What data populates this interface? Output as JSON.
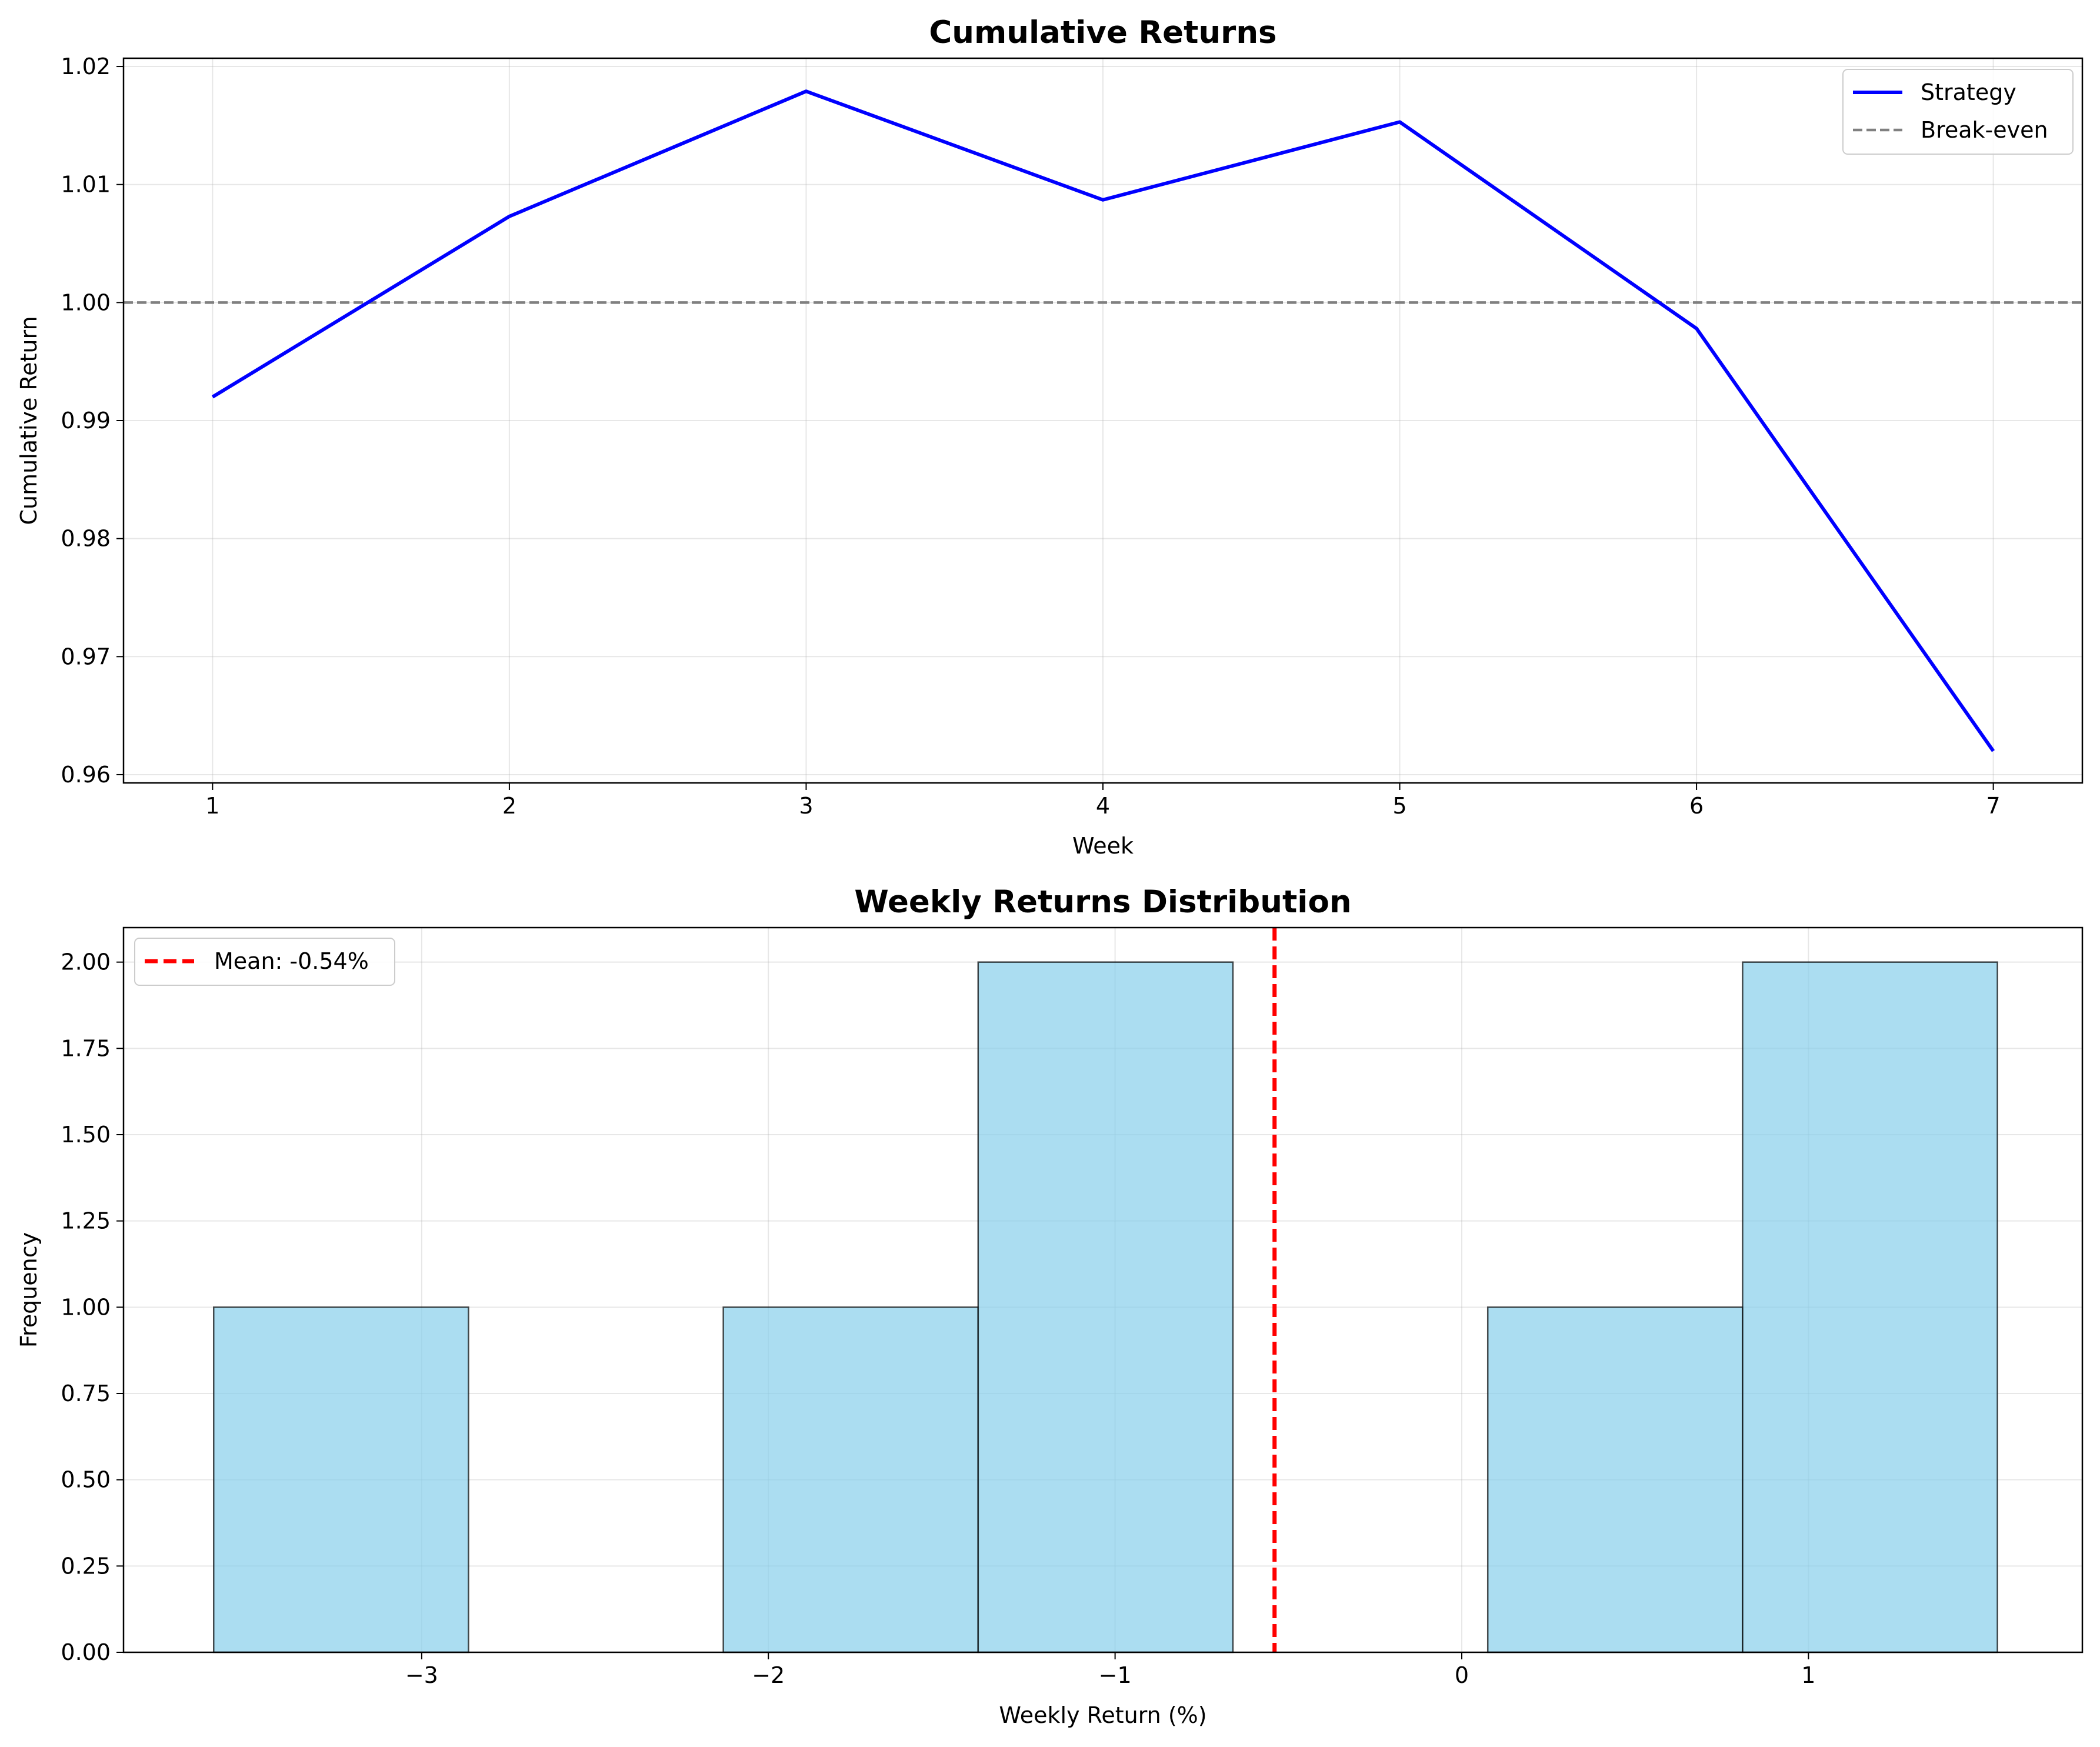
{
  "chart_data": [
    {
      "type": "line",
      "title": "Cumulative Returns",
      "xlabel": "Week",
      "ylabel": "Cumulative Return",
      "x": [
        1,
        2,
        3,
        4,
        5,
        6,
        7
      ],
      "xticks": [
        "1",
        "2",
        "3",
        "4",
        "5",
        "6",
        "7"
      ],
      "xlim": [
        0.7,
        7.3
      ],
      "ylim": [
        0.9593,
        1.0207
      ],
      "yticks": [
        "0.96",
        "0.97",
        "0.98",
        "0.99",
        "1.00",
        "1.01",
        "1.02"
      ],
      "grid": true,
      "legend_position": "top-right",
      "series": [
        {
          "name": "Strategy",
          "color": "#0000ff",
          "style": "solid",
          "values": [
            0.992,
            1.0073,
            1.0179,
            1.0087,
            1.0153,
            0.9978,
            0.962
          ]
        }
      ],
      "reference_lines": [
        {
          "name": "Break-even",
          "axis": "y",
          "value": 1.0,
          "color": "#808080",
          "style": "dashed"
        }
      ]
    },
    {
      "type": "bar",
      "title": "Weekly Returns Distribution",
      "xlabel": "Weekly Return (%)",
      "ylabel": "Frequency",
      "xlim": [
        -3.86,
        1.79
      ],
      "xticks": [
        "−3",
        "−2",
        "−1",
        "0",
        "1"
      ],
      "ylim": [
        0,
        2.1
      ],
      "yticks": [
        "0.00",
        "0.25",
        "0.50",
        "0.75",
        "1.00",
        "1.25",
        "1.50",
        "1.75",
        "2.00"
      ],
      "grid": true,
      "legend_position": "top-left",
      "bar_color": "#87ceeb",
      "edge_color": "#000000",
      "bins": [
        {
          "start": -3.6,
          "end": -2.865,
          "count": 1
        },
        {
          "start": -2.865,
          "end": -2.13,
          "count": 0
        },
        {
          "start": -2.13,
          "end": -1.395,
          "count": 1
        },
        {
          "start": -1.395,
          "end": -0.66,
          "count": 2
        },
        {
          "start": -0.66,
          "end": 0.075,
          "count": 0
        },
        {
          "start": 0.075,
          "end": 0.81,
          "count": 1
        },
        {
          "start": 0.81,
          "end": 1.545,
          "count": 2
        }
      ],
      "reference_lines": [
        {
          "name": "Mean: -0.54%",
          "axis": "x",
          "value": -0.54,
          "color": "#ff0000",
          "style": "dashed"
        }
      ]
    }
  ]
}
